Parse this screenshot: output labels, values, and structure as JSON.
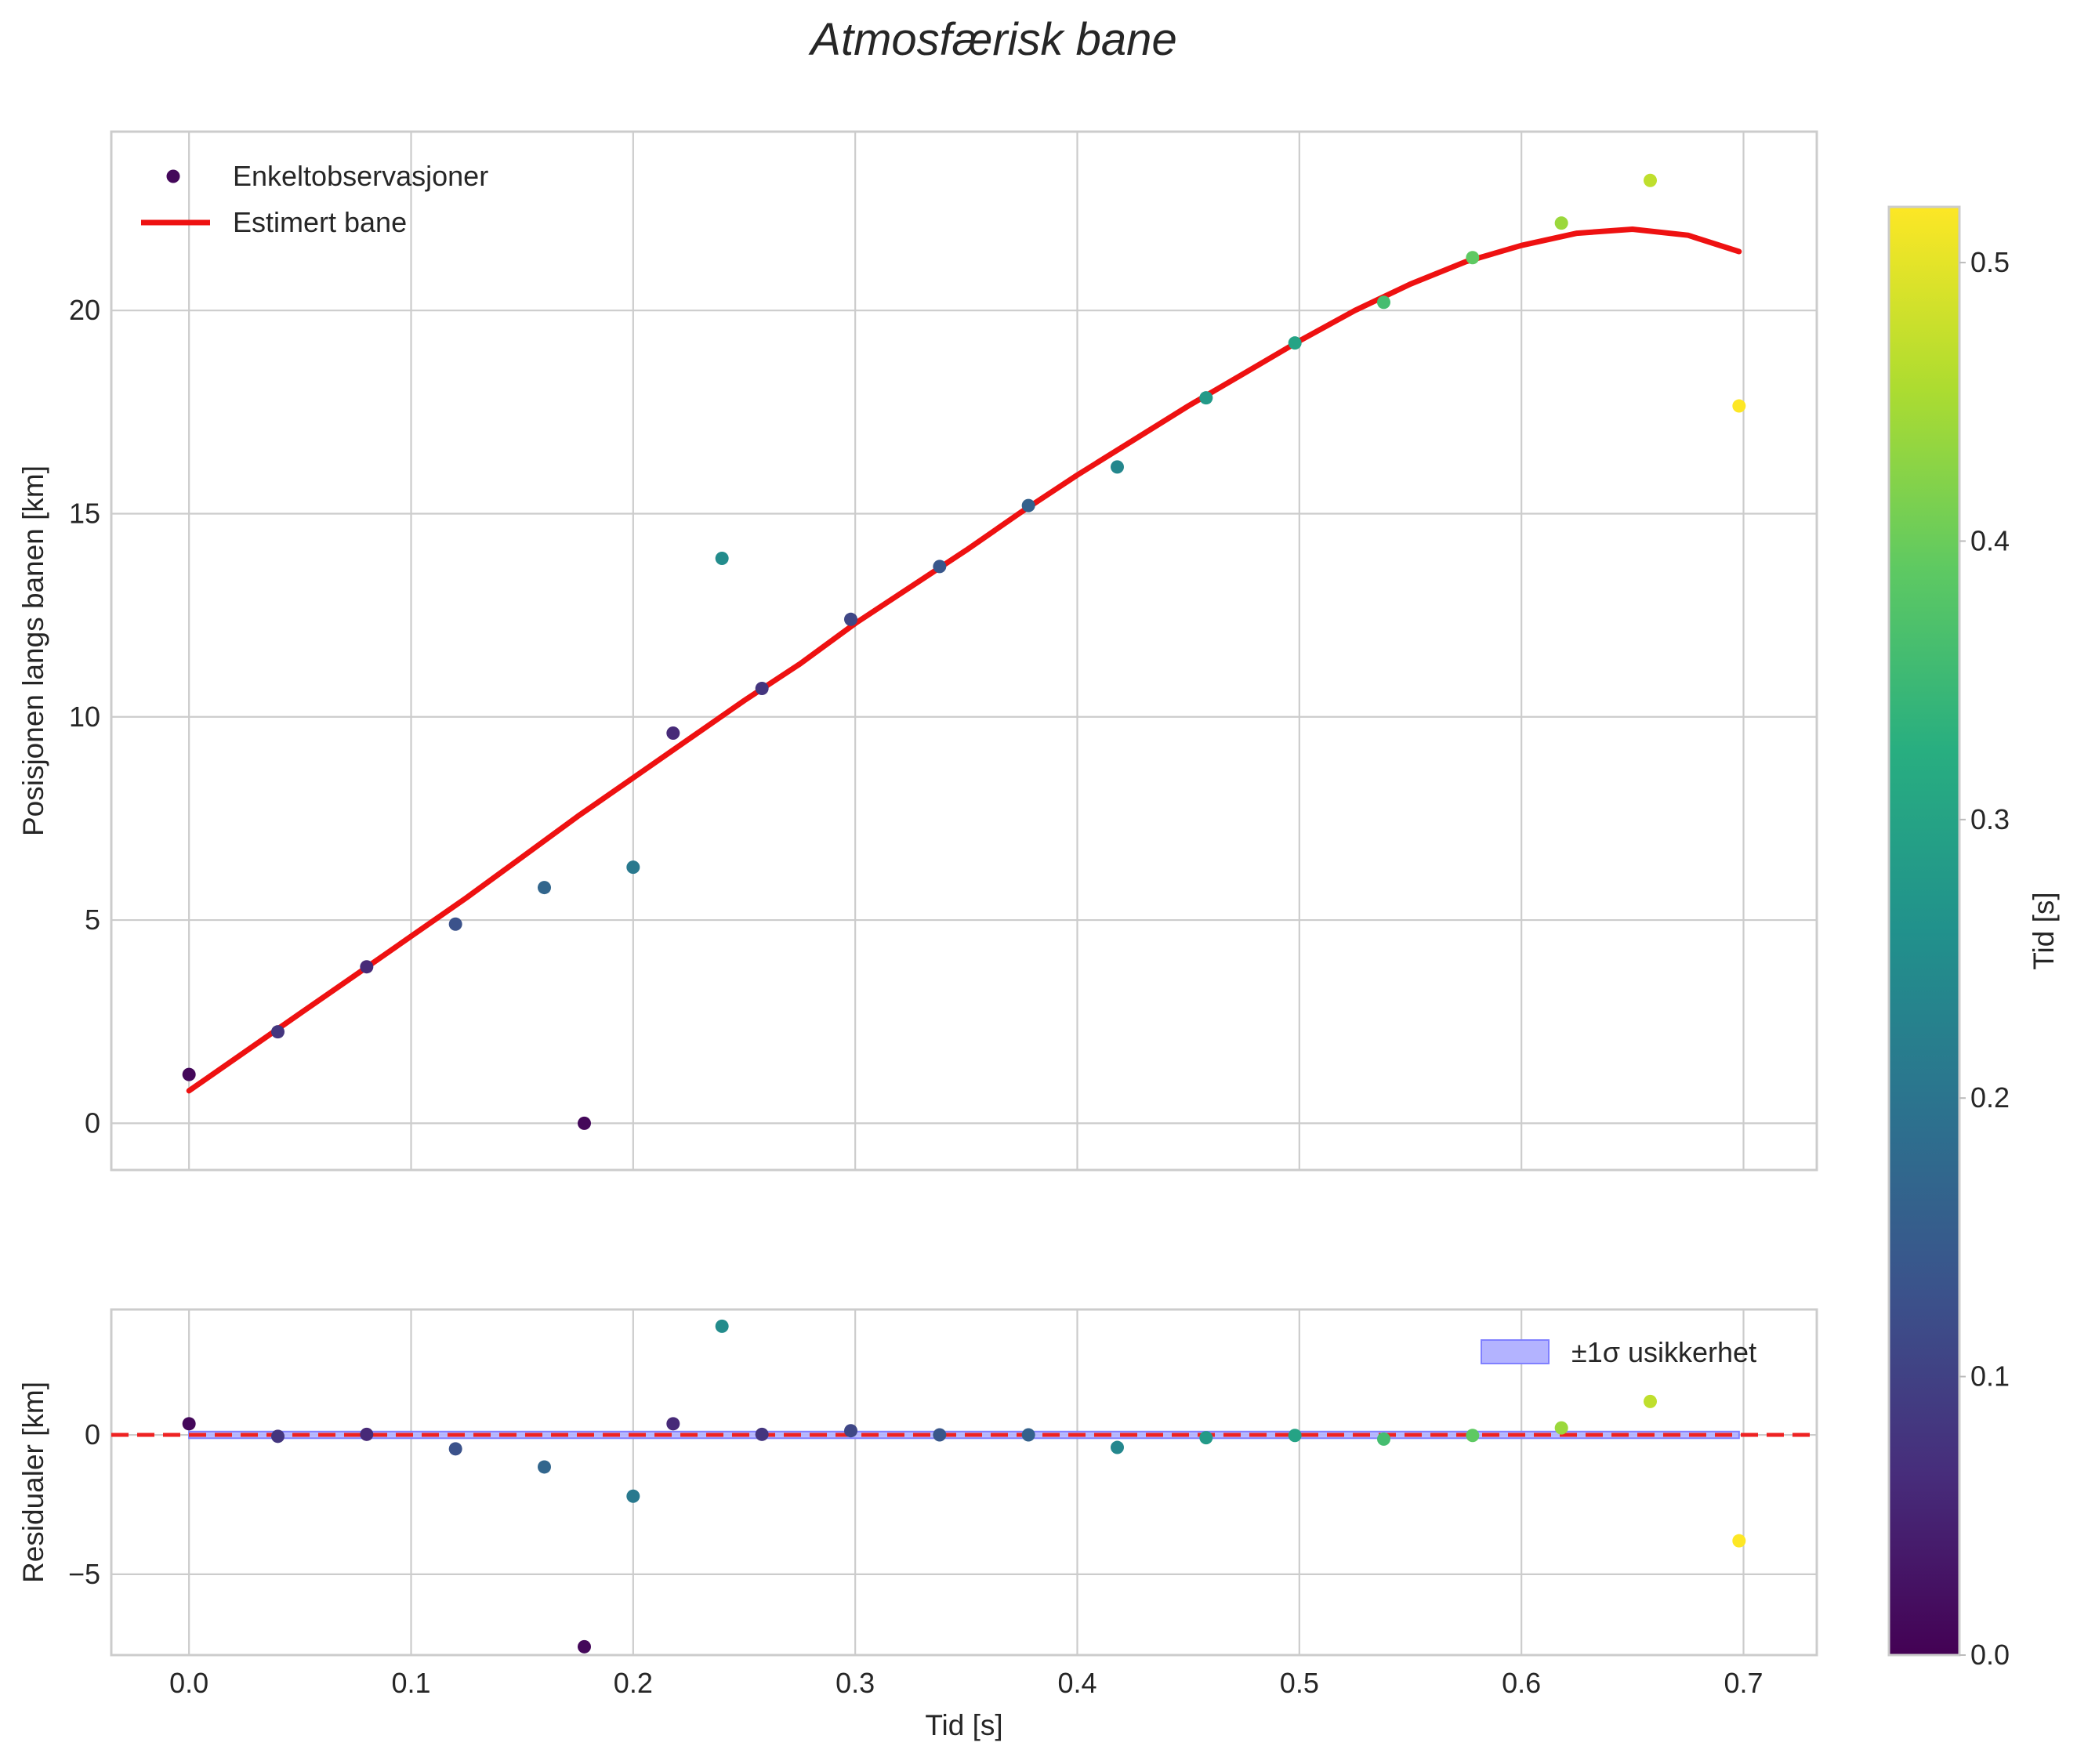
{
  "chart_data": {
    "type": "scatter",
    "title": "Atmosfærisk bane",
    "colors": {
      "fit_line": "#ee1111",
      "zero_line": "#ee2222",
      "band_fill": "#b3b3ff",
      "band_edge": "#8080ff",
      "grid": "#cccccc",
      "frame": "#cccccc"
    },
    "colormap": "viridis",
    "colorbar": {
      "label": "Tid [s]",
      "range": [
        0,
        0.52
      ],
      "ticks": [
        0.0,
        0.1,
        0.2,
        0.3,
        0.4,
        0.5
      ],
      "tick_labels": [
        "0.0",
        "0.1",
        "0.2",
        "0.3",
        "0.4",
        "0.5"
      ]
    },
    "shared_x": {
      "label": "Tid [s]",
      "range": [
        -0.035,
        0.733
      ],
      "ticks": [
        0.0,
        0.1,
        0.2,
        0.3,
        0.4,
        0.5,
        0.6,
        0.7
      ],
      "tick_labels": [
        "0.0",
        "0.1",
        "0.2",
        "0.3",
        "0.4",
        "0.5",
        "0.6",
        "0.7"
      ]
    },
    "main": {
      "ylabel": "Posisjonen langs banen [km]",
      "ylim": [
        -1.15,
        24.4
      ],
      "yticks": [
        0,
        5,
        10,
        15,
        20
      ],
      "ytick_labels": [
        "0",
        "5",
        "10",
        "15",
        "20"
      ],
      "legend": {
        "position": "upper left",
        "entries": [
          "Enkeltobservasjoner",
          "Estimert bane"
        ]
      },
      "observations": {
        "name": "Enkeltobservasjoner",
        "points": [
          {
            "x": 0.0,
            "y": 1.2,
            "t": 0.01
          },
          {
            "x": 0.04,
            "y": 2.25,
            "t": 0.08
          },
          {
            "x": 0.08,
            "y": 3.85,
            "t": 0.06
          },
          {
            "x": 0.12,
            "y": 4.9,
            "t": 0.13
          },
          {
            "x": 0.16,
            "y": 5.8,
            "t": 0.17
          },
          {
            "x": 0.178,
            "y": 0.0,
            "t": 0.01
          },
          {
            "x": 0.2,
            "y": 6.3,
            "t": 0.21
          },
          {
            "x": 0.218,
            "y": 9.6,
            "t": 0.06
          },
          {
            "x": 0.24,
            "y": 13.9,
            "t": 0.25
          },
          {
            "x": 0.258,
            "y": 10.7,
            "t": 0.08
          },
          {
            "x": 0.298,
            "y": 12.4,
            "t": 0.11
          },
          {
            "x": 0.338,
            "y": 13.7,
            "t": 0.14
          },
          {
            "x": 0.378,
            "y": 15.2,
            "t": 0.16
          },
          {
            "x": 0.418,
            "y": 16.15,
            "t": 0.24
          },
          {
            "x": 0.458,
            "y": 17.85,
            "t": 0.28
          },
          {
            "x": 0.498,
            "y": 19.2,
            "t": 0.3
          },
          {
            "x": 0.538,
            "y": 20.2,
            "t": 0.36
          },
          {
            "x": 0.578,
            "y": 21.3,
            "t": 0.39
          },
          {
            "x": 0.618,
            "y": 22.15,
            "t": 0.44
          },
          {
            "x": 0.658,
            "y": 23.2,
            "t": 0.47
          },
          {
            "x": 0.698,
            "y": 17.65,
            "t": 0.52
          }
        ]
      },
      "fit": {
        "name": "Estimert bane",
        "x": [
          0.0,
          0.025,
          0.05,
          0.075,
          0.1,
          0.125,
          0.15,
          0.175,
          0.2,
          0.225,
          0.25,
          0.275,
          0.3,
          0.325,
          0.35,
          0.375,
          0.4,
          0.425,
          0.45,
          0.475,
          0.5,
          0.525,
          0.55,
          0.575,
          0.6,
          0.625,
          0.65,
          0.675,
          0.698
        ],
        "y": [
          0.8,
          1.75,
          2.7,
          3.65,
          4.6,
          5.55,
          6.55,
          7.55,
          8.5,
          9.45,
          10.4,
          11.3,
          12.3,
          13.2,
          14.1,
          15.05,
          15.95,
          16.8,
          17.65,
          18.45,
          19.25,
          20.0,
          20.65,
          21.2,
          21.6,
          21.9,
          22.0,
          21.85,
          21.45
        ]
      }
    },
    "residuals": {
      "ylabel": "Residualer [km]",
      "ylim": [
        -7.9,
        4.5
      ],
      "yticks": [
        -5,
        0
      ],
      "ytick_labels": [
        "−5",
        "0"
      ],
      "legend": {
        "position": "upper right",
        "entries": [
          "±1σ usikkerhet"
        ]
      },
      "band": {
        "x": [
          0.0,
          0.698
        ],
        "lower": -0.12,
        "upper": 0.12
      },
      "points": [
        {
          "x": 0.0,
          "y": 0.4,
          "t": 0.01
        },
        {
          "x": 0.04,
          "y": -0.05,
          "t": 0.08
        },
        {
          "x": 0.08,
          "y": 0.02,
          "t": 0.06
        },
        {
          "x": 0.12,
          "y": -0.5,
          "t": 0.13
        },
        {
          "x": 0.16,
          "y": -1.15,
          "t": 0.17
        },
        {
          "x": 0.178,
          "y": -7.6,
          "t": 0.01
        },
        {
          "x": 0.2,
          "y": -2.2,
          "t": 0.21
        },
        {
          "x": 0.218,
          "y": 0.4,
          "t": 0.06
        },
        {
          "x": 0.24,
          "y": 3.9,
          "t": 0.25
        },
        {
          "x": 0.258,
          "y": 0.02,
          "t": 0.08
        },
        {
          "x": 0.298,
          "y": 0.15,
          "t": 0.11
        },
        {
          "x": 0.338,
          "y": 0.0,
          "t": 0.14
        },
        {
          "x": 0.378,
          "y": 0.0,
          "t": 0.16
        },
        {
          "x": 0.418,
          "y": -0.45,
          "t": 0.24
        },
        {
          "x": 0.458,
          "y": -0.1,
          "t": 0.28
        },
        {
          "x": 0.498,
          "y": -0.02,
          "t": 0.3
        },
        {
          "x": 0.538,
          "y": -0.15,
          "t": 0.36
        },
        {
          "x": 0.578,
          "y": -0.02,
          "t": 0.39
        },
        {
          "x": 0.618,
          "y": 0.25,
          "t": 0.44
        },
        {
          "x": 0.658,
          "y": 1.2,
          "t": 0.47
        },
        {
          "x": 0.698,
          "y": -3.8,
          "t": 0.52
        }
      ]
    }
  }
}
